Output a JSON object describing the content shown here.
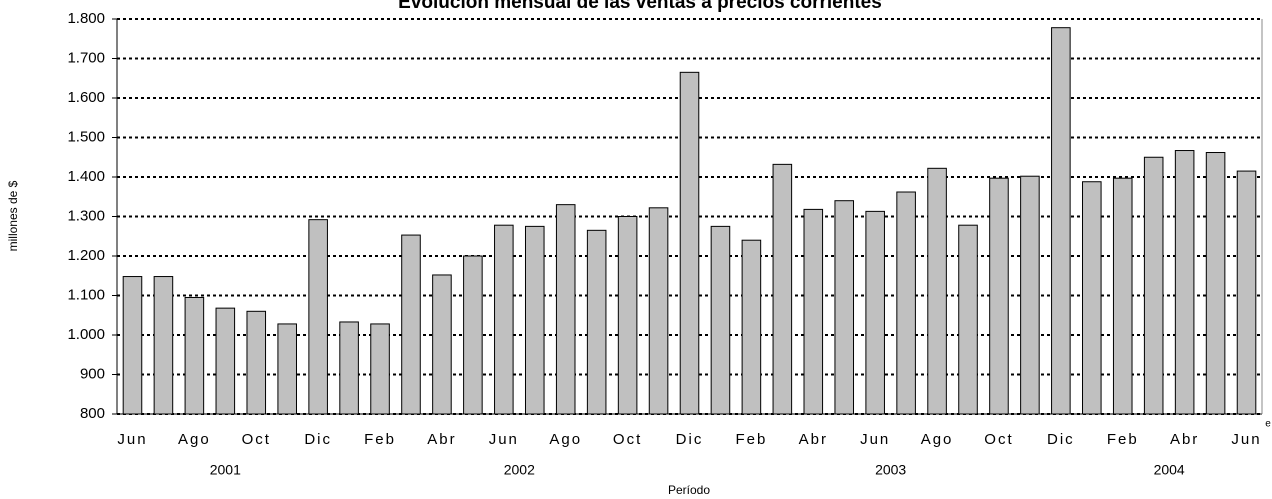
{
  "chart_data": {
    "type": "bar",
    "title": "Evolución mensual de las ventas a precios corrientes",
    "x_label": "Período",
    "y_label": "millones de $",
    "x_note": "e",
    "categories": [
      "Jun",
      null,
      "Ago",
      null,
      "Oct",
      null,
      "Dic",
      null,
      "Feb",
      null,
      "Abr",
      null,
      "Jun",
      null,
      "Ago",
      null,
      "Oct",
      null,
      "Dic",
      null,
      "Feb",
      null,
      "Abr",
      null,
      "Jun",
      null,
      "Ago",
      null,
      "Oct",
      null,
      "Dic",
      null,
      "Feb",
      null,
      "Abr",
      null,
      "Jun"
    ],
    "x_groups": [
      "2001",
      null,
      null,
      null,
      null,
      null,
      null,
      "2002",
      null,
      null,
      null,
      null,
      null,
      null,
      null,
      null,
      null,
      null,
      null,
      "2003",
      null,
      null,
      null,
      null,
      null,
      null,
      null,
      null,
      null,
      null,
      null,
      "2004",
      null,
      null,
      null,
      null,
      null
    ],
    "values": [
      1148,
      1148,
      1095,
      1068,
      1060,
      1028,
      1292,
      1033,
      1028,
      1253,
      1152,
      1200,
      1278,
      1275,
      1330,
      1265,
      1300,
      1322,
      1665,
      1275,
      1240,
      1432,
      1318,
      1340,
      1313,
      1362,
      1422,
      1278,
      1397,
      1402,
      1778,
      1388,
      1397,
      1450,
      1467,
      1462,
      1415
    ],
    "color": "#c0c0c0",
    "ylim": [
      800,
      1800
    ],
    "yticks": [
      {
        "value": 800,
        "label": "800"
      },
      {
        "value": 900,
        "label": "900"
      },
      {
        "value": 1000,
        "label": "1.000"
      },
      {
        "value": 1100,
        "label": "1.100"
      },
      {
        "value": 1200,
        "label": "1.200"
      },
      {
        "value": 1300,
        "label": "1.300"
      },
      {
        "value": 1400,
        "label": "1.400"
      },
      {
        "value": 1500,
        "label": "1.500"
      },
      {
        "value": 1600,
        "label": "1.600"
      },
      {
        "value": 1700,
        "label": "1.700"
      },
      {
        "value": 1800,
        "label": "1.800"
      }
    ],
    "grid": true
  }
}
